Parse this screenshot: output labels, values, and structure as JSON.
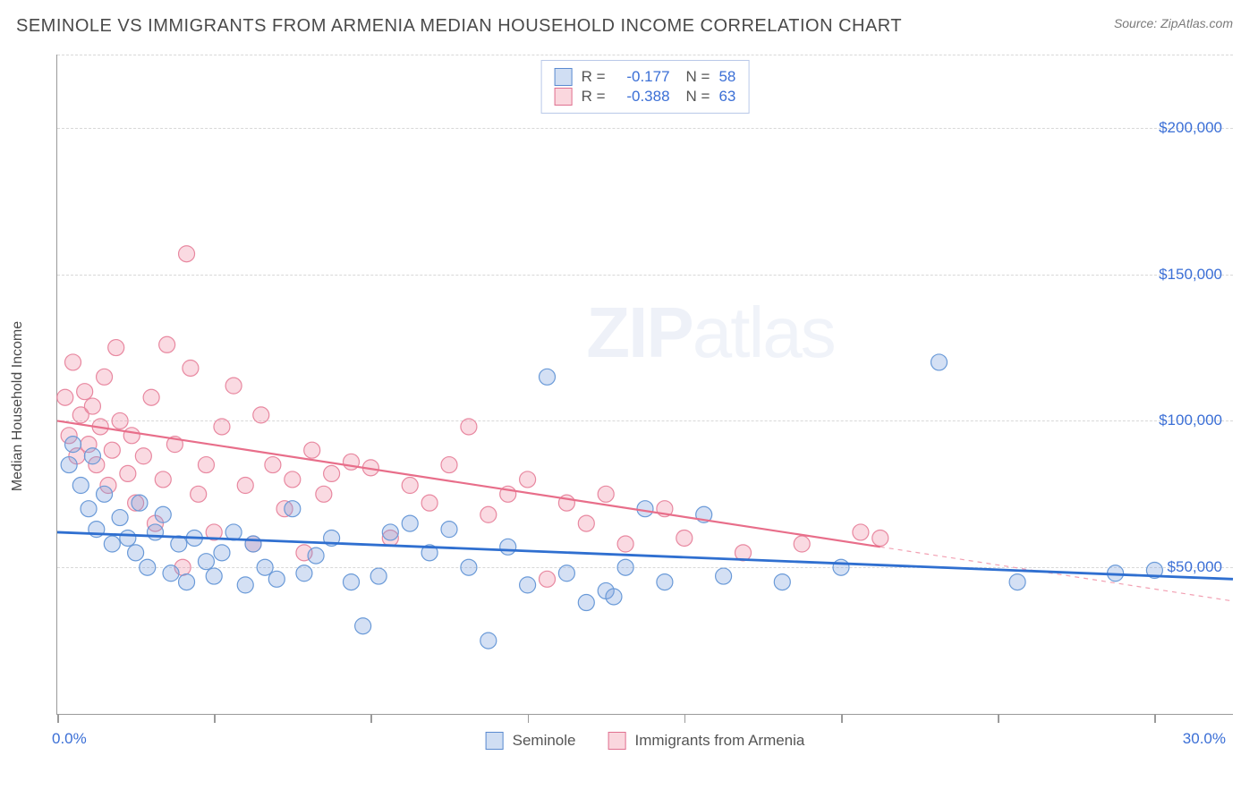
{
  "header": {
    "title": "SEMINOLE VS IMMIGRANTS FROM ARMENIA MEDIAN HOUSEHOLD INCOME CORRELATION CHART",
    "source": "Source: ZipAtlas.com"
  },
  "chart": {
    "type": "scatter",
    "y_axis_label": "Median Household Income",
    "watermark_a": "ZIP",
    "watermark_b": "atlas",
    "xlim": [
      0,
      30
    ],
    "ylim": [
      0,
      225000
    ],
    "x_tick_positions": [
      0,
      4,
      8,
      12,
      16,
      20,
      24,
      28
    ],
    "x_tick_labels_shown": {
      "0": "0.0%",
      "30": "30.0%"
    },
    "y_gridlines": [
      50000,
      100000,
      150000,
      200000,
      225000
    ],
    "y_tick_labels": {
      "50000": "$50,000",
      "100000": "$100,000",
      "150000": "$150,000",
      "200000": "$200,000"
    },
    "marker_radius": 9,
    "colors": {
      "series_blue_fill": "rgba(120,160,220,0.32)",
      "series_blue_stroke": "#6a9ad8",
      "series_pink_fill": "rgba(240,140,165,0.32)",
      "series_pink_stroke": "#e888a0",
      "trend_blue": "#2f6fd0",
      "trend_pink": "#e86e8a",
      "trend_pink_dash": "#f2a0b2",
      "grid": "#d8d8d8",
      "axis": "#9a9a9a",
      "tick_text": "#3b6fd6",
      "title_text": "#4a4a4a"
    },
    "legend_top": {
      "rows": [
        {
          "swatch": "blue",
          "r_label": "R =",
          "r_value": "-0.177",
          "n_label": "N =",
          "n_value": "58"
        },
        {
          "swatch": "pink",
          "r_label": "R =",
          "r_value": "-0.388",
          "n_label": "N =",
          "n_value": "63"
        }
      ]
    },
    "legend_bottom": {
      "items": [
        {
          "swatch": "blue",
          "label": "Seminole"
        },
        {
          "swatch": "pink",
          "label": "Immigrants from Armenia"
        }
      ]
    },
    "trend_lines": {
      "blue": {
        "x1": 0,
        "y1": 62000,
        "x2": 30,
        "y2": 46000
      },
      "pink_solid": {
        "x1": 0,
        "y1": 100000,
        "x2": 21,
        "y2": 57000
      },
      "pink_dash": {
        "x1": 21,
        "y1": 57000,
        "x2": 30,
        "y2": 38500
      }
    },
    "series": {
      "blue": [
        [
          0.3,
          85000
        ],
        [
          0.4,
          92000
        ],
        [
          0.6,
          78000
        ],
        [
          0.8,
          70000
        ],
        [
          0.9,
          88000
        ],
        [
          1.0,
          63000
        ],
        [
          1.2,
          75000
        ],
        [
          1.4,
          58000
        ],
        [
          1.6,
          67000
        ],
        [
          1.8,
          60000
        ],
        [
          2.0,
          55000
        ],
        [
          2.1,
          72000
        ],
        [
          2.3,
          50000
        ],
        [
          2.5,
          62000
        ],
        [
          2.7,
          68000
        ],
        [
          2.9,
          48000
        ],
        [
          3.1,
          58000
        ],
        [
          3.3,
          45000
        ],
        [
          3.5,
          60000
        ],
        [
          3.8,
          52000
        ],
        [
          4.0,
          47000
        ],
        [
          4.2,
          55000
        ],
        [
          4.5,
          62000
        ],
        [
          4.8,
          44000
        ],
        [
          5.0,
          58000
        ],
        [
          5.3,
          50000
        ],
        [
          5.6,
          46000
        ],
        [
          6.0,
          70000
        ],
        [
          6.3,
          48000
        ],
        [
          6.6,
          54000
        ],
        [
          7.0,
          60000
        ],
        [
          7.5,
          45000
        ],
        [
          7.8,
          30000
        ],
        [
          8.2,
          47000
        ],
        [
          8.5,
          62000
        ],
        [
          9.0,
          65000
        ],
        [
          9.5,
          55000
        ],
        [
          10.0,
          63000
        ],
        [
          10.5,
          50000
        ],
        [
          11.0,
          25000
        ],
        [
          11.5,
          57000
        ],
        [
          12.0,
          44000
        ],
        [
          12.5,
          115000
        ],
        [
          13.0,
          48000
        ],
        [
          13.5,
          38000
        ],
        [
          14.0,
          42000
        ],
        [
          14.2,
          40000
        ],
        [
          14.5,
          50000
        ],
        [
          15.0,
          70000
        ],
        [
          15.5,
          45000
        ],
        [
          16.5,
          68000
        ],
        [
          17.0,
          47000
        ],
        [
          18.5,
          45000
        ],
        [
          20.0,
          50000
        ],
        [
          22.5,
          120000
        ],
        [
          24.5,
          45000
        ],
        [
          27.0,
          48000
        ],
        [
          28.0,
          49000
        ]
      ],
      "pink": [
        [
          0.2,
          108000
        ],
        [
          0.3,
          95000
        ],
        [
          0.4,
          120000
        ],
        [
          0.5,
          88000
        ],
        [
          0.6,
          102000
        ],
        [
          0.7,
          110000
        ],
        [
          0.8,
          92000
        ],
        [
          0.9,
          105000
        ],
        [
          1.0,
          85000
        ],
        [
          1.1,
          98000
        ],
        [
          1.2,
          115000
        ],
        [
          1.3,
          78000
        ],
        [
          1.4,
          90000
        ],
        [
          1.5,
          125000
        ],
        [
          1.6,
          100000
        ],
        [
          1.8,
          82000
        ],
        [
          1.9,
          95000
        ],
        [
          2.0,
          72000
        ],
        [
          2.2,
          88000
        ],
        [
          2.4,
          108000
        ],
        [
          2.5,
          65000
        ],
        [
          2.7,
          80000
        ],
        [
          2.8,
          126000
        ],
        [
          3.0,
          92000
        ],
        [
          3.2,
          50000
        ],
        [
          3.4,
          118000
        ],
        [
          3.3,
          157000
        ],
        [
          3.6,
          75000
        ],
        [
          3.8,
          85000
        ],
        [
          4.0,
          62000
        ],
        [
          4.2,
          98000
        ],
        [
          4.5,
          112000
        ],
        [
          4.8,
          78000
        ],
        [
          5.0,
          58000
        ],
        [
          5.2,
          102000
        ],
        [
          5.5,
          85000
        ],
        [
          5.8,
          70000
        ],
        [
          6.0,
          80000
        ],
        [
          6.3,
          55000
        ],
        [
          6.5,
          90000
        ],
        [
          6.8,
          75000
        ],
        [
          7.0,
          82000
        ],
        [
          7.5,
          86000
        ],
        [
          8.0,
          84000
        ],
        [
          8.5,
          60000
        ],
        [
          9.0,
          78000
        ],
        [
          9.5,
          72000
        ],
        [
          10.0,
          85000
        ],
        [
          10.5,
          98000
        ],
        [
          11.0,
          68000
        ],
        [
          11.5,
          75000
        ],
        [
          12.0,
          80000
        ],
        [
          12.5,
          46000
        ],
        [
          13.0,
          72000
        ],
        [
          13.5,
          65000
        ],
        [
          14.0,
          75000
        ],
        [
          14.5,
          58000
        ],
        [
          15.5,
          70000
        ],
        [
          16.0,
          60000
        ],
        [
          17.5,
          55000
        ],
        [
          19.0,
          58000
        ],
        [
          20.5,
          62000
        ],
        [
          21.0,
          60000
        ]
      ]
    }
  }
}
